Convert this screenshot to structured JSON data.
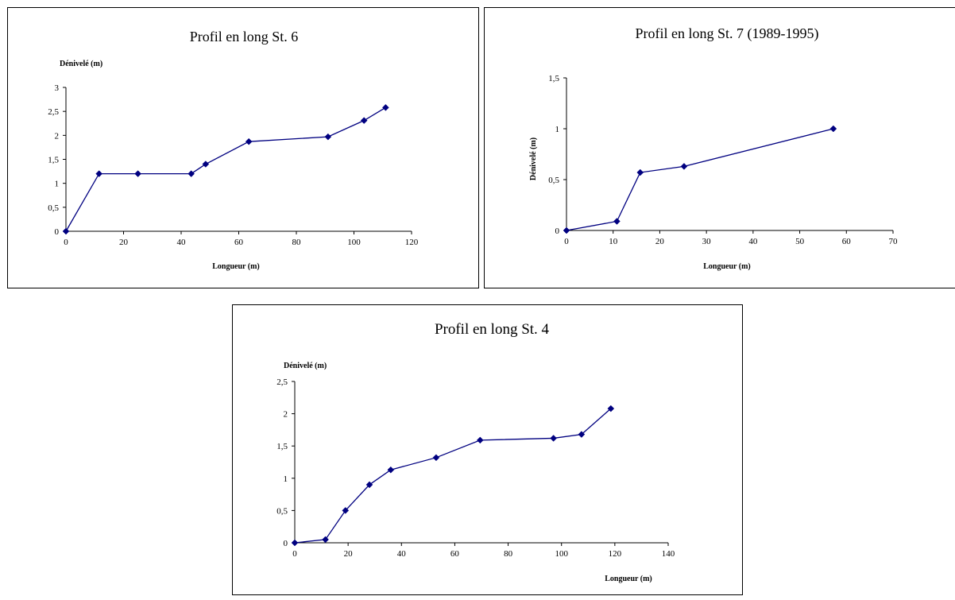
{
  "chart_data": [
    {
      "type": "line",
      "title": "Profil en long St. 6",
      "xlabel": "Longueur (m)",
      "ylabel": "Dénivelé (m)",
      "xlim": [
        0,
        120
      ],
      "ylim": [
        0,
        3
      ],
      "x_ticks": [
        "0",
        "20",
        "40",
        "60",
        "80",
        "100",
        "120"
      ],
      "y_ticks": [
        "0",
        "0,5",
        "1",
        "1,5",
        "2",
        "2,5",
        "3"
      ],
      "color": "#000080",
      "x": [
        0,
        11.5,
        25,
        43.5,
        48.5,
        63.5,
        91,
        103.5,
        111
      ],
      "y": [
        0,
        1.2,
        1.2,
        1.2,
        1.4,
        1.87,
        1.97,
        2.31,
        2.58
      ]
    },
    {
      "type": "line",
      "title": "Profil en long St. 7 (1989-1995)",
      "xlabel": "Longueur (m)",
      "ylabel": "Dénivelé (m)",
      "xlim": [
        0,
        70
      ],
      "ylim": [
        0,
        1.5
      ],
      "x_ticks": [
        "0",
        "10",
        "20",
        "30",
        "40",
        "50",
        "60",
        "70"
      ],
      "y_ticks": [
        "0",
        "0,5",
        "1",
        "1,5"
      ],
      "color": "#000080",
      "x": [
        0,
        10.8,
        15.8,
        25.2,
        57.2
      ],
      "y": [
        0,
        0.09,
        0.57,
        0.63,
        1.0
      ]
    },
    {
      "type": "line",
      "title": "Profil en long St. 4",
      "xlabel": "Longueur (m)",
      "ylabel": "Dénivelé (m)",
      "xlim": [
        0,
        140
      ],
      "ylim": [
        0,
        2.5
      ],
      "x_ticks": [
        "0",
        "20",
        "40",
        "60",
        "80",
        "100",
        "120",
        "140"
      ],
      "y_ticks": [
        "0",
        "0,5",
        "1",
        "1,5",
        "2",
        "2,5"
      ],
      "color": "#000080",
      "x": [
        0,
        11.5,
        19,
        28,
        36,
        53,
        69.5,
        97,
        107.5,
        118.5
      ],
      "y": [
        0,
        0.05,
        0.5,
        0.9,
        1.13,
        1.32,
        1.59,
        1.62,
        1.68,
        2.08
      ]
    }
  ]
}
